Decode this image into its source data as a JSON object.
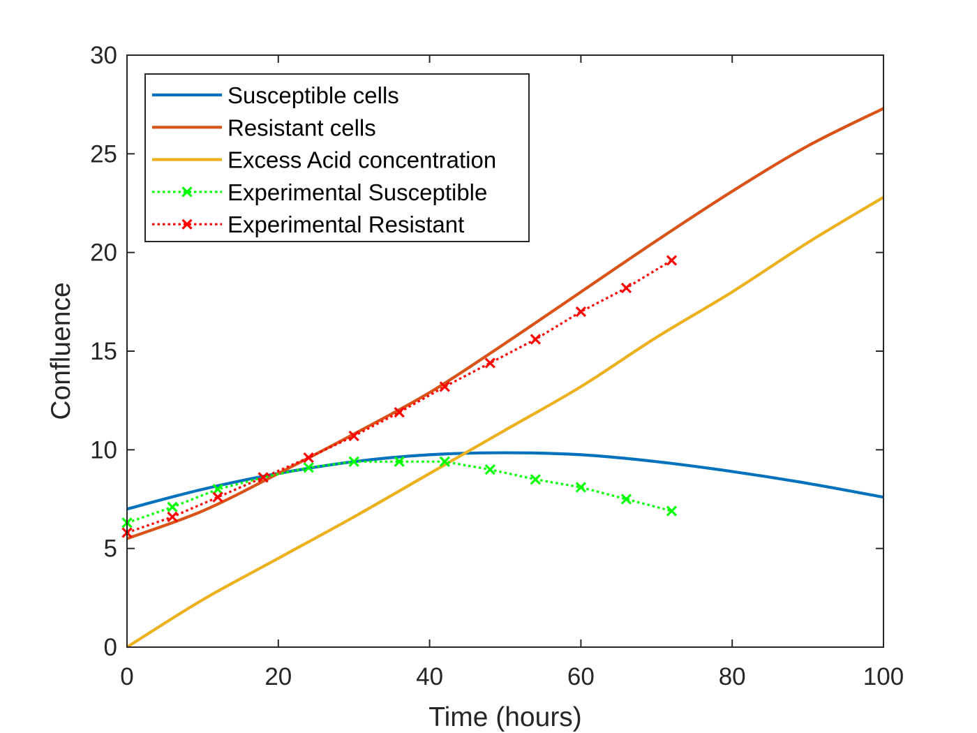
{
  "chart_data": {
    "type": "line",
    "title": "",
    "xlabel": "Time (hours)",
    "ylabel": "Confluence",
    "xlim": [
      0,
      100
    ],
    "ylim": [
      0,
      30
    ],
    "xticks": [
      0,
      20,
      40,
      60,
      80,
      100
    ],
    "yticks": [
      0,
      5,
      10,
      15,
      20,
      25,
      30
    ],
    "grid": false,
    "legend_position": "top-left",
    "series": [
      {
        "name": "Susceptible cells",
        "style": "solid",
        "color": "#0072BD",
        "x": [
          0,
          10,
          20,
          30,
          40,
          50,
          60,
          70,
          80,
          90,
          100
        ],
        "y": [
          7.0,
          8.0,
          8.8,
          9.4,
          9.75,
          9.85,
          9.75,
          9.4,
          8.9,
          8.3,
          7.6
        ]
      },
      {
        "name": "Resistant cells",
        "style": "solid",
        "color": "#D95319",
        "x": [
          0,
          10,
          20,
          30,
          40,
          50,
          60,
          70,
          80,
          90,
          100
        ],
        "y": [
          5.5,
          6.9,
          8.8,
          10.8,
          12.9,
          15.4,
          18.0,
          20.6,
          23.1,
          25.4,
          27.3
        ]
      },
      {
        "name": "Excess Acid concentration",
        "style": "solid",
        "color": "#EDB120",
        "x": [
          0,
          10,
          20,
          30,
          40,
          50,
          60,
          70,
          80,
          90,
          100
        ],
        "y": [
          0,
          2.4,
          4.5,
          6.6,
          8.8,
          11.0,
          13.2,
          15.7,
          18.0,
          20.5,
          22.8
        ]
      },
      {
        "name": "Experimental Susceptible",
        "style": "dotted",
        "marker": "x",
        "color": "#00FF00",
        "x": [
          0,
          6,
          12,
          18,
          24,
          30,
          36,
          42,
          48,
          54,
          60,
          66,
          72
        ],
        "y": [
          6.3,
          7.1,
          8.0,
          8.6,
          9.1,
          9.4,
          9.4,
          9.4,
          9.0,
          8.5,
          8.1,
          7.5,
          6.9
        ]
      },
      {
        "name": "Experimental Resistant",
        "style": "dotted",
        "marker": "x",
        "color": "#FF0000",
        "x": [
          0,
          6,
          12,
          18,
          24,
          30,
          36,
          42,
          48,
          54,
          60,
          66,
          72
        ],
        "y": [
          5.8,
          6.6,
          7.6,
          8.6,
          9.6,
          10.7,
          11.9,
          13.2,
          14.4,
          15.6,
          17.0,
          18.2,
          19.6
        ]
      }
    ]
  }
}
